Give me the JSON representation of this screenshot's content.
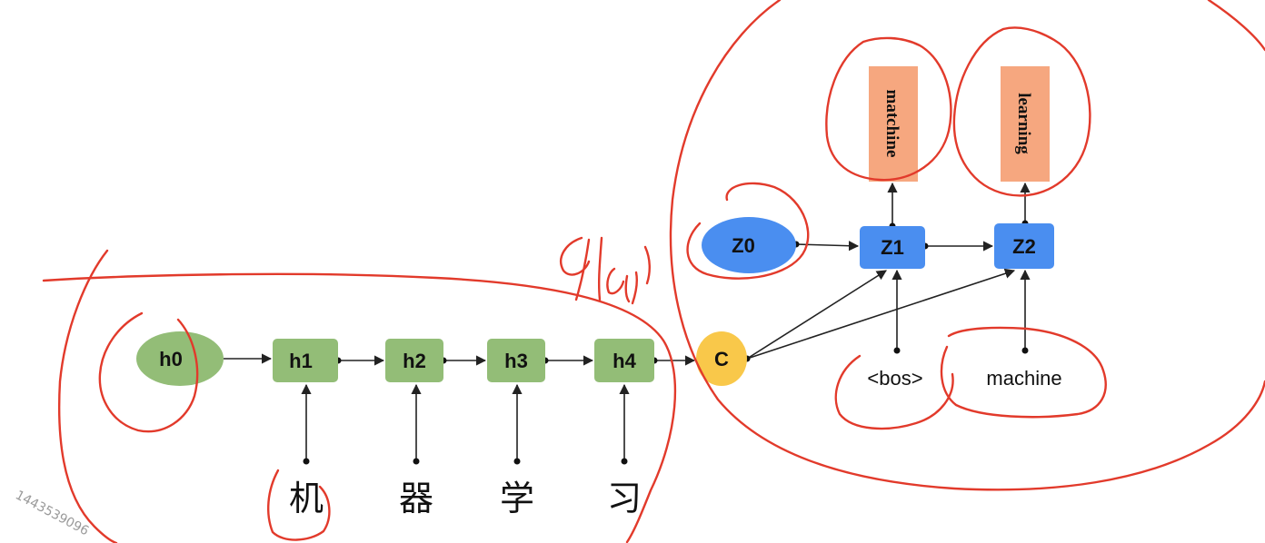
{
  "encoder": {
    "initial_state": "h0",
    "hidden_states": [
      "h1",
      "h2",
      "h3",
      "h4"
    ],
    "inputs": [
      "机",
      "器",
      "学",
      "习"
    ]
  },
  "context": "C",
  "decoder": {
    "initial_state": "Z0",
    "states": [
      "Z1",
      "Z2"
    ],
    "inputs": [
      "<bos>",
      "machine"
    ],
    "outputs": [
      "matchine",
      "learning"
    ]
  },
  "colors": {
    "encoder_node": "#93bd77",
    "context_node": "#f9c84a",
    "decoder_node": "#4a8ef0",
    "output_box": "#f6a77f",
    "annotation_ink": "#e23a2b"
  },
  "watermark": "1443539096"
}
